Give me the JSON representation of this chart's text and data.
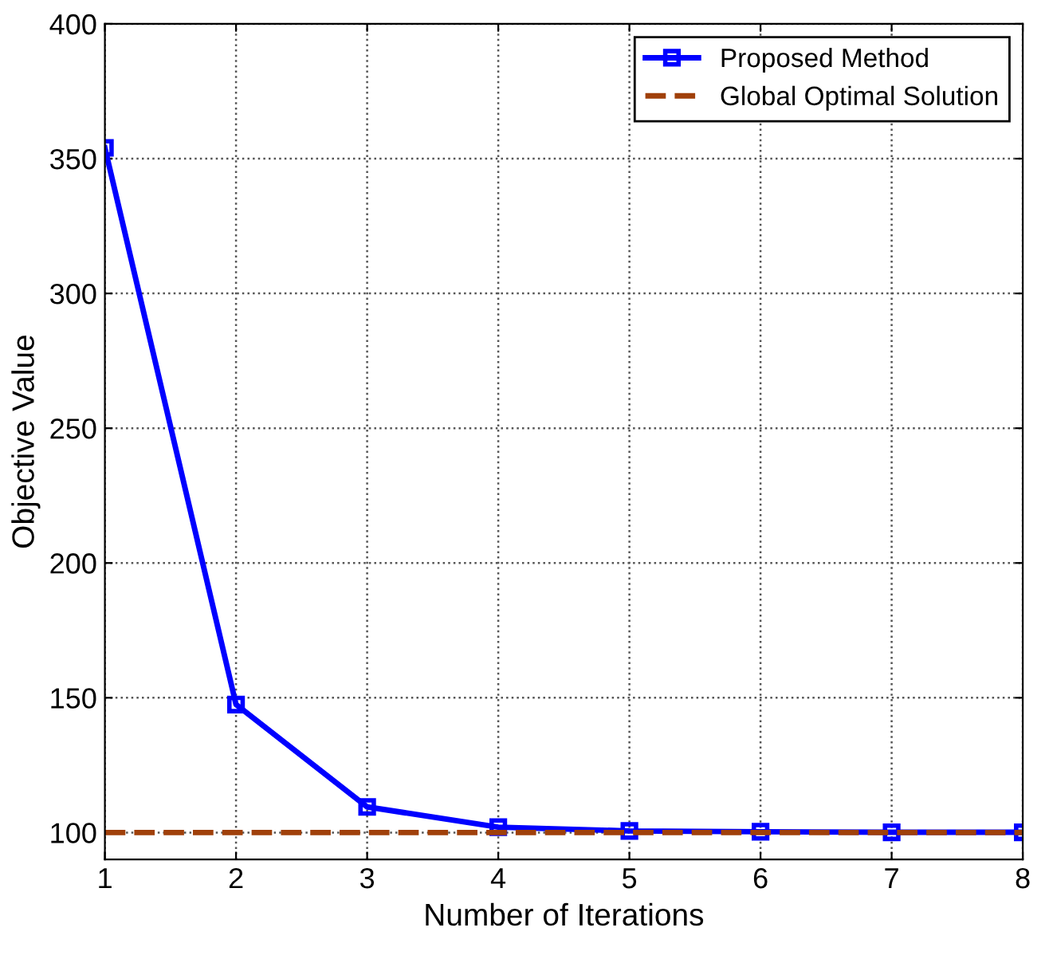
{
  "chart_data": {
    "type": "line",
    "xlabel": "Number of Iterations",
    "ylabel": "Objective Value",
    "x": [
      1,
      2,
      3,
      4,
      5,
      6,
      7,
      8
    ],
    "series": [
      {
        "name": "Proposed Method",
        "color": "#0000ff",
        "values": [
          354,
          147.5,
          109.5,
          102,
          100.6,
          100.3,
          100.1,
          100.1
        ],
        "marker": "square",
        "line_style": "solid"
      },
      {
        "name": "Global Optimal Solution",
        "color": "#a0400a",
        "values": [
          100,
          100,
          100,
          100,
          100,
          100,
          100,
          100
        ],
        "marker": "none",
        "line_style": "dashed"
      }
    ],
    "xlim": [
      1,
      8
    ],
    "xticks": [
      1,
      2,
      3,
      4,
      5,
      6,
      7,
      8
    ],
    "ylim": [
      90,
      400
    ],
    "yticks": [
      100,
      150,
      200,
      250,
      300,
      350,
      400
    ],
    "grid": true,
    "legend": "top right"
  }
}
